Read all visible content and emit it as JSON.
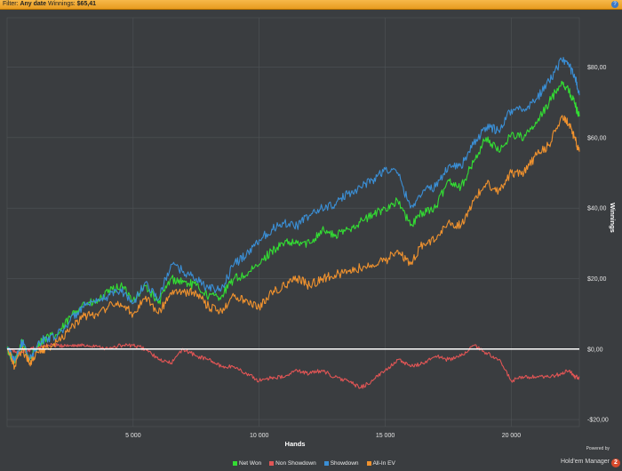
{
  "filter_bar": {
    "filter_label": "Filter:",
    "filter_value": "Any date",
    "winnings_label": "Winnings:",
    "winnings_value": "$65,41",
    "help_icon": "?"
  },
  "brand": {
    "powered_by": "Powered by",
    "name": "Hold'em Manager",
    "badge": "2"
  },
  "colors": {
    "background": "#3a3d40",
    "grid": "#4f5356",
    "zero_line": "#ffffff"
  },
  "chart_data": {
    "type": "line",
    "xlabel": "Hands",
    "ylabel": "Winnings",
    "xlim": [
      0,
      22700
    ],
    "ylim": [
      -22,
      94
    ],
    "x_ticks": [
      {
        "value": 5000,
        "label": "5 000"
      },
      {
        "value": 10000,
        "label": "10 000"
      },
      {
        "value": 15000,
        "label": "15 000"
      },
      {
        "value": 20000,
        "label": "20 000"
      }
    ],
    "y_ticks": [
      {
        "value": 80,
        "label": "$80,00"
      },
      {
        "value": 60,
        "label": "$60,00"
      },
      {
        "value": 40,
        "label": "$40,00"
      },
      {
        "value": 20,
        "label": "$20,00"
      },
      {
        "value": 0,
        "label": "$0,00"
      },
      {
        "value": -20,
        "label": "-$20,00"
      }
    ],
    "grid": true,
    "legend_position": "bottom-center",
    "series": [
      {
        "name": "Net Won",
        "color": "#33dd33",
        "x": [
          0,
          300,
          600,
          900,
          1200,
          1500,
          2000,
          2500,
          3000,
          3500,
          4000,
          4500,
          5000,
          5500,
          6000,
          6500,
          7000,
          7500,
          8000,
          8500,
          9000,
          9500,
          10000,
          10500,
          11000,
          11500,
          12000,
          12500,
          13000,
          13500,
          14000,
          14500,
          15000,
          15500,
          16000,
          16500,
          17000,
          17500,
          18000,
          18500,
          19000,
          19500,
          20000,
          20500,
          21000,
          21500,
          22000,
          22300,
          22500,
          22700
        ],
        "y": [
          0,
          -4,
          2,
          -3,
          1,
          3,
          4,
          9,
          13,
          13,
          16,
          18,
          14,
          18,
          13,
          20,
          19,
          18,
          15,
          15,
          20,
          21,
          24,
          28,
          30,
          30,
          30,
          34,
          32,
          34,
          36,
          38,
          40,
          42,
          35,
          39,
          40,
          48,
          46,
          53,
          60,
          56,
          61,
          60,
          64,
          70,
          76,
          73,
          70,
          66
        ]
      },
      {
        "name": "Non Showdown",
        "color": "#e15555",
        "x": [
          0,
          500,
          1000,
          1500,
          2000,
          2500,
          3000,
          3500,
          4000,
          4500,
          5000,
          5500,
          6000,
          6500,
          7000,
          7500,
          8000,
          8500,
          9000,
          9500,
          10000,
          10500,
          11000,
          11500,
          12000,
          12500,
          13000,
          13500,
          14000,
          14500,
          15000,
          15500,
          16000,
          16500,
          17000,
          17500,
          18000,
          18500,
          19000,
          19500,
          20000,
          20500,
          21000,
          21500,
          22000,
          22300,
          22500,
          22700
        ],
        "y": [
          0,
          -1,
          0,
          1,
          1,
          1,
          1,
          1,
          0,
          1,
          1,
          0,
          -3,
          -4,
          0,
          -2,
          -3,
          -5,
          -5,
          -7,
          -9,
          -8,
          -8,
          -6,
          -7,
          -6,
          -8,
          -9,
          -11,
          -9,
          -6,
          -3,
          -5,
          -4,
          -2,
          -3,
          -2,
          1,
          -1,
          -3,
          -9,
          -8,
          -8,
          -8,
          -7,
          -6,
          -8,
          -8
        ]
      },
      {
        "name": "Showdown",
        "color": "#3a8fd6",
        "x": [
          0,
          300,
          600,
          900,
          1200,
          1500,
          2000,
          2500,
          3000,
          3500,
          4000,
          4500,
          5000,
          5500,
          6000,
          6500,
          7000,
          7500,
          8000,
          8500,
          9000,
          9500,
          10000,
          10500,
          11000,
          11500,
          12000,
          12500,
          13000,
          13500,
          14000,
          14500,
          15000,
          15500,
          16000,
          16500,
          17000,
          17500,
          18000,
          18500,
          19000,
          19500,
          20000,
          20500,
          21000,
          21500,
          22000,
          22300,
          22500,
          22700
        ],
        "y": [
          0,
          -3,
          2,
          -3,
          1,
          3,
          4,
          8,
          12,
          13,
          15,
          17,
          13,
          19,
          14,
          24,
          22,
          20,
          17,
          17,
          24,
          27,
          31,
          34,
          36,
          35,
          38,
          40,
          41,
          44,
          46,
          48,
          51,
          50,
          40,
          45,
          46,
          52,
          52,
          58,
          63,
          62,
          68,
          68,
          71,
          76,
          82,
          80,
          78,
          72
        ]
      },
      {
        "name": "All-In EV",
        "color": "#f0922e",
        "x": [
          0,
          300,
          600,
          900,
          1200,
          1500,
          2000,
          2500,
          3000,
          3500,
          4000,
          4500,
          5000,
          5500,
          6000,
          6500,
          7000,
          7500,
          8000,
          8500,
          9000,
          9500,
          10000,
          10500,
          11000,
          11500,
          12000,
          12500,
          13000,
          13500,
          14000,
          14500,
          15000,
          15500,
          16000,
          16500,
          17000,
          17500,
          18000,
          18500,
          19000,
          19500,
          20000,
          20500,
          21000,
          21500,
          22000,
          22300,
          22500,
          22700
        ],
        "y": [
          0,
          -5,
          0,
          -4,
          -1,
          0,
          2,
          6,
          9,
          10,
          12,
          13,
          10,
          15,
          10,
          16,
          16,
          16,
          12,
          11,
          15,
          14,
          12,
          16,
          18,
          20,
          18,
          20,
          21,
          22,
          23,
          24,
          25,
          28,
          24,
          30,
          31,
          36,
          35,
          42,
          47,
          45,
          50,
          50,
          55,
          58,
          66,
          64,
          60,
          56
        ]
      }
    ]
  }
}
